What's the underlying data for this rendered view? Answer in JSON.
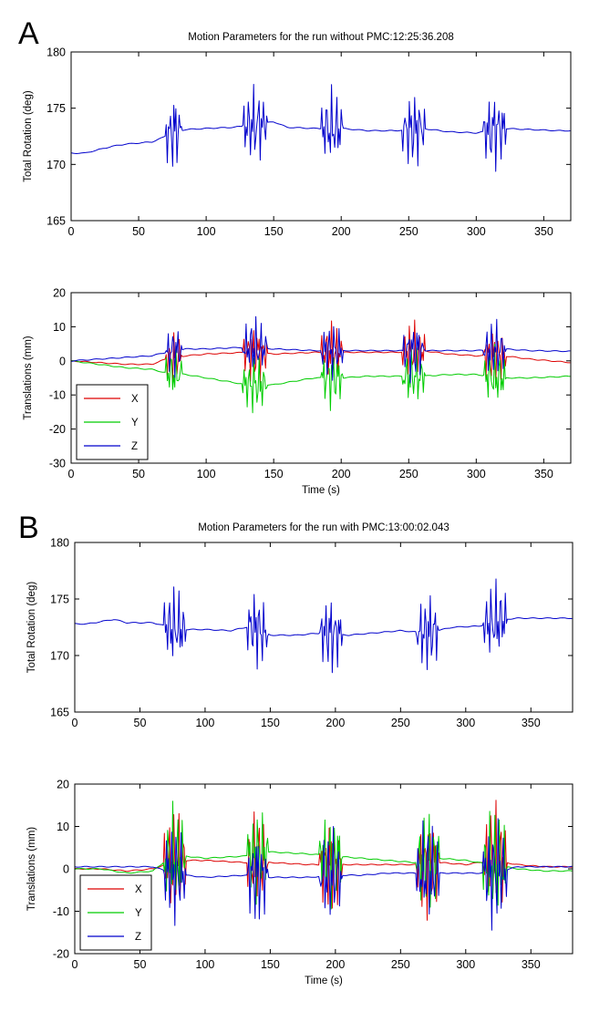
{
  "figure": {
    "panels": [
      {
        "label": "A"
      },
      {
        "label": "B"
      }
    ]
  },
  "chart_data": [
    {
      "type": "line",
      "panel": "A",
      "title": "Motion Parameters for the run without PMC:12:25:36.208",
      "xlabel": "",
      "ylabel": "Total Rotation (deg)",
      "xlim": [
        0,
        370
      ],
      "ylim": [
        165,
        180
      ],
      "xticks": [
        0,
        50,
        100,
        150,
        200,
        250,
        300,
        350
      ],
      "yticks": [
        165,
        170,
        175,
        180
      ],
      "grid": false,
      "legend": null,
      "bursts": [
        {
          "start": 70,
          "end": 82,
          "amp": 4
        },
        {
          "start": 127,
          "end": 145,
          "amp": 4
        },
        {
          "start": 185,
          "end": 201,
          "amp": 4
        },
        {
          "start": 245,
          "end": 262,
          "amp": 4
        },
        {
          "start": 305,
          "end": 322,
          "amp": 4
        }
      ],
      "series": [
        {
          "name": "Total Rotation",
          "color": "#0000cc",
          "x": [
            0,
            10,
            20,
            30,
            40,
            50,
            60,
            68,
            75,
            85,
            100,
            120,
            135,
            150,
            160,
            180,
            200,
            220,
            240,
            260,
            280,
            300,
            320,
            340,
            360,
            370
          ],
          "y": [
            171.0,
            171.0,
            171.3,
            171.6,
            171.8,
            171.9,
            172.0,
            172.4,
            172.9,
            173.1,
            173.2,
            173.3,
            173.5,
            173.8,
            173.3,
            173.2,
            173.2,
            173.0,
            173.0,
            173.2,
            172.9,
            172.8,
            173.2,
            173.1,
            173.0,
            173.0
          ]
        }
      ]
    },
    {
      "type": "line",
      "panel": "A",
      "title": "",
      "xlabel": "Time (s)",
      "ylabel": "Translations (mm)",
      "xlim": [
        0,
        370
      ],
      "ylim": [
        -30,
        20
      ],
      "xticks": [
        0,
        50,
        100,
        150,
        200,
        250,
        300,
        350
      ],
      "yticks": [
        -30,
        -20,
        -10,
        0,
        10,
        20
      ],
      "grid": false,
      "legend": "bottom-left",
      "bursts": [
        {
          "start": 70,
          "end": 82,
          "amp": 9
        },
        {
          "start": 127,
          "end": 145,
          "amp": 10
        },
        {
          "start": 185,
          "end": 201,
          "amp": 10
        },
        {
          "start": 245,
          "end": 262,
          "amp": 10
        },
        {
          "start": 305,
          "end": 322,
          "amp": 10
        }
      ],
      "series": [
        {
          "name": "X",
          "color": "#dd0000",
          "x": [
            0,
            20,
            40,
            60,
            70,
            85,
            100,
            130,
            150,
            180,
            200,
            220,
            240,
            260,
            280,
            300,
            320,
            340,
            370
          ],
          "y": [
            0,
            -0.5,
            -1,
            -1,
            0.5,
            1.5,
            2,
            2.5,
            2,
            2.5,
            2.5,
            2.5,
            2.5,
            3,
            2,
            1.5,
            1.5,
            0.5,
            -0.5
          ]
        },
        {
          "name": "Y",
          "color": "#00cc00",
          "x": [
            0,
            20,
            40,
            60,
            70,
            85,
            100,
            130,
            150,
            180,
            200,
            220,
            240,
            260,
            280,
            300,
            320,
            340,
            370
          ],
          "y": [
            0,
            -1,
            -2,
            -2.5,
            -3.5,
            -4,
            -5,
            -7,
            -7,
            -5,
            -5,
            -4.5,
            -4.5,
            -4.5,
            -4,
            -4,
            -5,
            -5,
            -4.5
          ]
        },
        {
          "name": "Z",
          "color": "#0000cc",
          "x": [
            0,
            20,
            40,
            60,
            70,
            85,
            100,
            130,
            150,
            180,
            200,
            220,
            240,
            260,
            280,
            300,
            320,
            340,
            370
          ],
          "y": [
            0,
            0.5,
            1,
            1.5,
            2.5,
            3.5,
            3.5,
            4,
            3.5,
            3,
            3,
            3,
            3,
            3,
            3,
            3,
            3.5,
            3,
            2.8
          ]
        }
      ]
    },
    {
      "type": "line",
      "panel": "B",
      "title": "Motion Parameters for the run with PMC:13:00:02.043",
      "xlabel": "",
      "ylabel": "Total Rotation (deg)",
      "xlim": [
        0,
        382
      ],
      "ylim": [
        165,
        180
      ],
      "xticks": [
        0,
        50,
        100,
        150,
        200,
        250,
        300,
        350
      ],
      "yticks": [
        165,
        170,
        175,
        180
      ],
      "grid": false,
      "legend": null,
      "bursts": [
        {
          "start": 68,
          "end": 85,
          "amp": 4
        },
        {
          "start": 132,
          "end": 148,
          "amp": 4
        },
        {
          "start": 188,
          "end": 205,
          "amp": 4
        },
        {
          "start": 262,
          "end": 280,
          "amp": 4
        },
        {
          "start": 313,
          "end": 332,
          "amp": 4
        }
      ],
      "series": [
        {
          "name": "Total Rotation",
          "color": "#0000cc",
          "x": [
            0,
            10,
            20,
            30,
            40,
            50,
            60,
            70,
            85,
            100,
            120,
            135,
            150,
            170,
            190,
            210,
            230,
            250,
            270,
            290,
            310,
            330,
            340,
            360,
            382
          ],
          "y": [
            172.8,
            172.8,
            173.0,
            173.2,
            172.9,
            172.9,
            172.9,
            172.6,
            172.3,
            172.3,
            172.2,
            172.6,
            171.8,
            171.8,
            172.0,
            171.8,
            172.0,
            172.2,
            172.0,
            172.5,
            172.6,
            173.2,
            173.3,
            173.3,
            173.3
          ]
        }
      ]
    },
    {
      "type": "line",
      "panel": "B",
      "title": "",
      "xlabel": "Time (s)",
      "ylabel": "Translations (mm)",
      "xlim": [
        0,
        382
      ],
      "ylim": [
        -20,
        20
      ],
      "xticks": [
        0,
        50,
        100,
        150,
        200,
        250,
        300,
        350
      ],
      "yticks": [
        -20,
        -10,
        0,
        10,
        20
      ],
      "grid": false,
      "legend": "bottom-left",
      "bursts": [
        {
          "start": 68,
          "end": 85,
          "amp": 14
        },
        {
          "start": 132,
          "end": 148,
          "amp": 13
        },
        {
          "start": 188,
          "end": 205,
          "amp": 13
        },
        {
          "start": 262,
          "end": 280,
          "amp": 14
        },
        {
          "start": 313,
          "end": 332,
          "amp": 15
        }
      ],
      "series": [
        {
          "name": "X",
          "color": "#dd0000",
          "x": [
            0,
            20,
            40,
            60,
            70,
            85,
            100,
            130,
            150,
            180,
            200,
            220,
            240,
            260,
            280,
            300,
            320,
            340,
            360,
            382
          ],
          "y": [
            0,
            0,
            -0.5,
            0,
            1,
            2,
            2,
            1.5,
            1.5,
            1,
            1,
            1,
            1,
            1,
            1.5,
            1,
            2,
            1,
            0.5,
            0.5
          ]
        },
        {
          "name": "Y",
          "color": "#00cc00",
          "x": [
            0,
            20,
            40,
            60,
            70,
            85,
            100,
            130,
            150,
            180,
            200,
            220,
            240,
            260,
            280,
            300,
            320,
            340,
            360,
            382
          ],
          "y": [
            0,
            0,
            -1,
            -0.5,
            2,
            3,
            2.5,
            3,
            4,
            3.5,
            3,
            2.5,
            2,
            1.5,
            2.5,
            2,
            1,
            0,
            -0.5,
            -0.5
          ]
        },
        {
          "name": "Z",
          "color": "#0000cc",
          "x": [
            0,
            20,
            40,
            60,
            70,
            85,
            100,
            130,
            150,
            180,
            200,
            220,
            240,
            260,
            280,
            300,
            320,
            340,
            360,
            382
          ],
          "y": [
            0.5,
            0.5,
            0.5,
            0.5,
            -0.5,
            -1.5,
            -2,
            -1.5,
            -2,
            -2,
            -1.5,
            -1.5,
            -1,
            -1,
            -1,
            -1,
            -1,
            0.5,
            0.5,
            0.5
          ]
        }
      ]
    }
  ]
}
